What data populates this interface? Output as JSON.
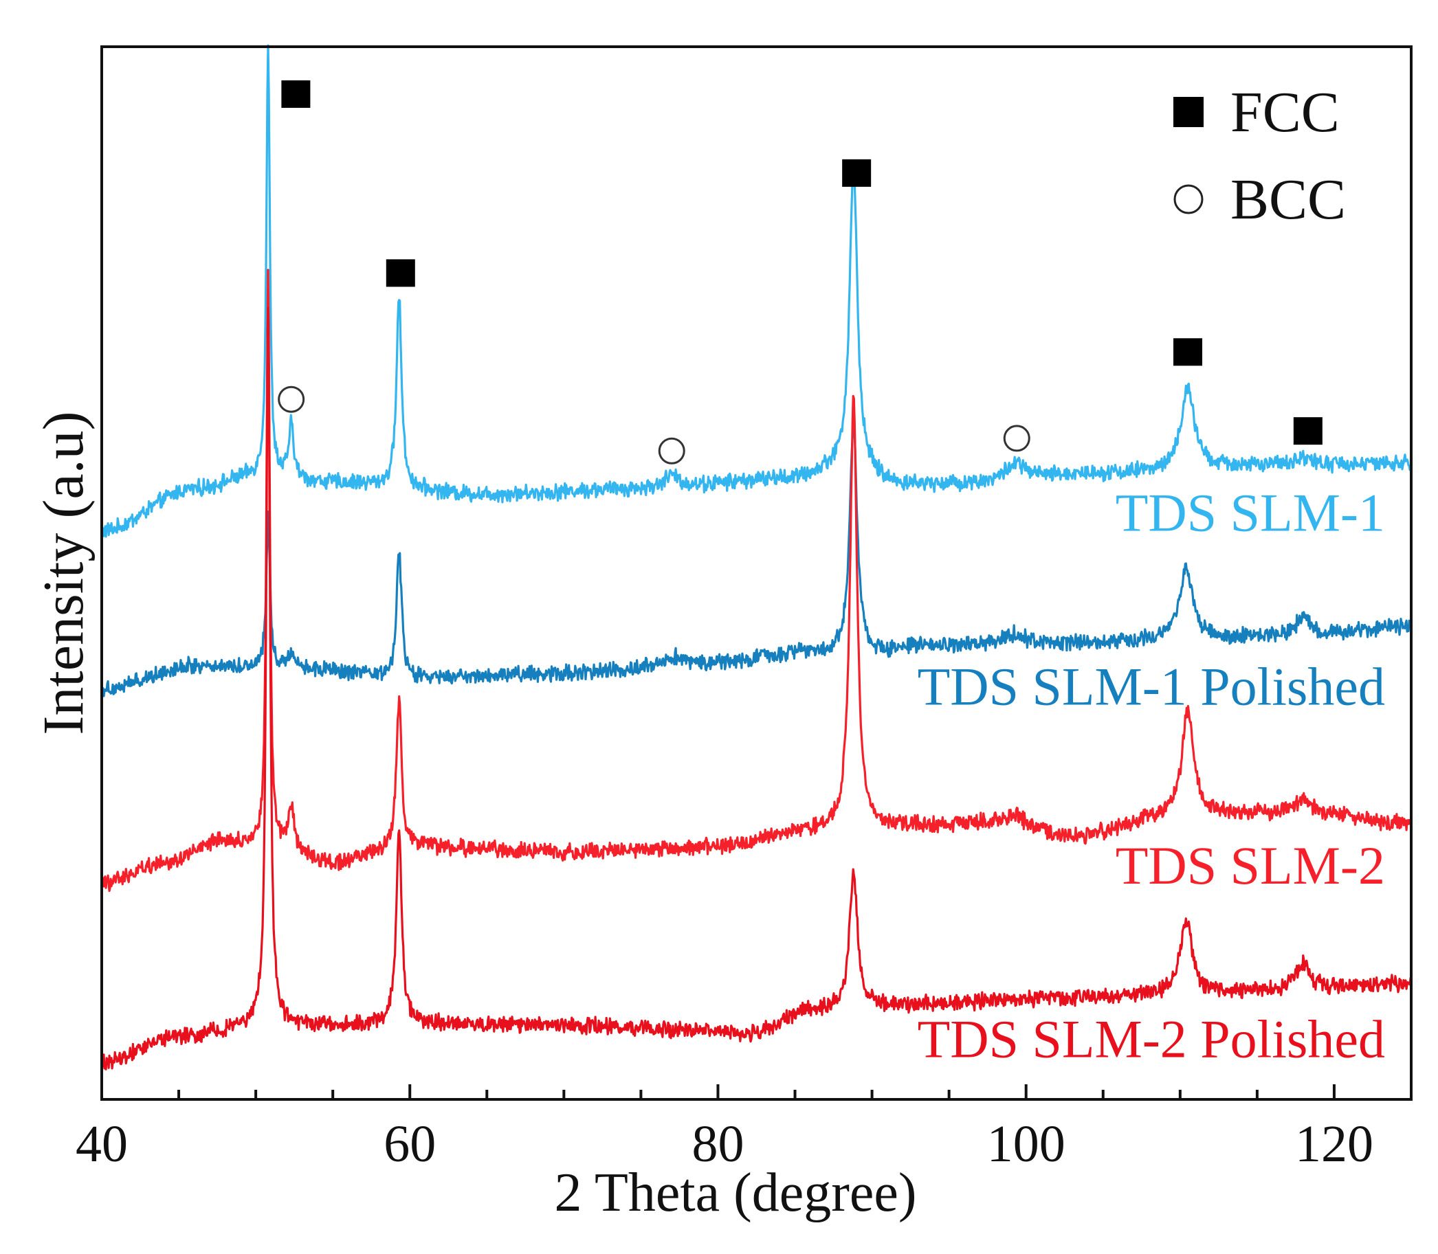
{
  "chart_data": {
    "type": "line",
    "title": "",
    "xlabel": "2 Theta (degree)",
    "ylabel": "Intensity (a.u)",
    "xlim": [
      40,
      125
    ],
    "ylim": [
      0,
      1
    ],
    "grid": false,
    "legend_position": "top-right",
    "x_ticks": [
      40,
      60,
      80,
      100,
      120
    ],
    "x_tick_labels": [
      "40",
      "60",
      "80",
      "100",
      "120"
    ],
    "legend": [
      {
        "label": "FCC",
        "marker": "filled-square"
      },
      {
        "label": "BCC",
        "marker": "open-circle"
      }
    ],
    "series": [
      {
        "name": "TDS SLM-1",
        "color": "#33b5f0",
        "baseline": [
          [
            40,
            0.54
          ],
          [
            46,
            0.58
          ],
          [
            50,
            0.592
          ],
          [
            55,
            0.586
          ],
          [
            65,
            0.575
          ],
          [
            75,
            0.58
          ],
          [
            85,
            0.59
          ],
          [
            88,
            0.6
          ],
          [
            92,
            0.584
          ],
          [
            96,
            0.585
          ],
          [
            105,
            0.595
          ],
          [
            115,
            0.602
          ],
          [
            125,
            0.604
          ]
        ],
        "peaks": [
          {
            "x": 50.8,
            "height": 0.41,
            "width": 0.13
          },
          {
            "x": 52.3,
            "height": 0.05,
            "width": 0.2
          },
          {
            "x": 59.3,
            "height": 0.18,
            "width": 0.2
          },
          {
            "x": 77.0,
            "height": 0.012,
            "width": 0.6
          },
          {
            "x": 88.8,
            "height": 0.29,
            "width": 0.3
          },
          {
            "x": 99.3,
            "height": 0.016,
            "width": 0.8
          },
          {
            "x": 110.5,
            "height": 0.078,
            "width": 0.5
          },
          {
            "x": 118.0,
            "height": 0.008,
            "width": 0.6
          }
        ]
      },
      {
        "name": "TDS SLM-1 Polished",
        "color": "#1680bf",
        "baseline": [
          [
            40,
            0.39
          ],
          [
            46,
            0.412
          ],
          [
            52,
            0.41
          ],
          [
            60,
            0.4
          ],
          [
            70,
            0.405
          ],
          [
            80,
            0.415
          ],
          [
            86,
            0.425
          ],
          [
            89,
            0.42
          ],
          [
            93,
            0.43
          ],
          [
            100,
            0.432
          ],
          [
            110,
            0.437
          ],
          [
            118,
            0.44
          ],
          [
            125,
            0.45
          ]
        ],
        "peaks": [
          {
            "x": 50.8,
            "height": 0.14,
            "width": 0.15
          },
          {
            "x": 52.3,
            "height": 0.015,
            "width": 0.25
          },
          {
            "x": 59.3,
            "height": 0.12,
            "width": 0.2
          },
          {
            "x": 77.0,
            "height": 0.008,
            "width": 0.7
          },
          {
            "x": 88.8,
            "height": 0.22,
            "width": 0.3
          },
          {
            "x": 99.3,
            "height": 0.01,
            "width": 0.8
          },
          {
            "x": 110.4,
            "height": 0.07,
            "width": 0.5
          },
          {
            "x": 118.0,
            "height": 0.02,
            "width": 0.5
          }
        ]
      },
      {
        "name": "TDS SLM-2",
        "color": "#f5202a",
        "baseline": [
          [
            40,
            0.205
          ],
          [
            44,
            0.225
          ],
          [
            48,
            0.245
          ],
          [
            51,
            0.238
          ],
          [
            55,
            0.225
          ],
          [
            60,
            0.24
          ],
          [
            70,
            0.235
          ],
          [
            80,
            0.24
          ],
          [
            86,
            0.255
          ],
          [
            89,
            0.255
          ],
          [
            93,
            0.26
          ],
          [
            98,
            0.262
          ],
          [
            103,
            0.25
          ],
          [
            110,
            0.27
          ],
          [
            118,
            0.273
          ],
          [
            125,
            0.262
          ]
        ],
        "peaks": [
          {
            "x": 50.8,
            "height": 0.55,
            "width": 0.13
          },
          {
            "x": 52.3,
            "height": 0.04,
            "width": 0.25
          },
          {
            "x": 59.3,
            "height": 0.14,
            "width": 0.2
          },
          {
            "x": 88.8,
            "height": 0.41,
            "width": 0.28
          },
          {
            "x": 99.3,
            "height": 0.01,
            "width": 0.8
          },
          {
            "x": 110.5,
            "height": 0.1,
            "width": 0.45
          },
          {
            "x": 118.0,
            "height": 0.012,
            "width": 0.5
          }
        ]
      },
      {
        "name": "TDS SLM-2 Polished",
        "color": "#e8101c",
        "baseline": [
          [
            40,
            0.035
          ],
          [
            45,
            0.06
          ],
          [
            50,
            0.07
          ],
          [
            55,
            0.07
          ],
          [
            60,
            0.072
          ],
          [
            70,
            0.07
          ],
          [
            80,
            0.065
          ],
          [
            82,
            0.062
          ],
          [
            86,
            0.085
          ],
          [
            89,
            0.088
          ],
          [
            93,
            0.09
          ],
          [
            100,
            0.095
          ],
          [
            110,
            0.1
          ],
          [
            118,
            0.105
          ],
          [
            125,
            0.11
          ]
        ],
        "peaks": [
          {
            "x": 50.8,
            "height": 0.68,
            "width": 0.15
          },
          {
            "x": 59.3,
            "height": 0.18,
            "width": 0.22
          },
          {
            "x": 88.8,
            "height": 0.13,
            "width": 0.3
          },
          {
            "x": 110.4,
            "height": 0.07,
            "width": 0.45
          },
          {
            "x": 118.0,
            "height": 0.025,
            "width": 0.5
          }
        ]
      }
    ],
    "annotations": [
      {
        "type": "FCC",
        "x": 52.6,
        "y": 0.955
      },
      {
        "type": "FCC",
        "x": 59.4,
        "y": 0.785
      },
      {
        "type": "FCC",
        "x": 89.0,
        "y": 0.88
      },
      {
        "type": "FCC",
        "x": 110.5,
        "y": 0.71
      },
      {
        "type": "FCC",
        "x": 118.3,
        "y": 0.635
      },
      {
        "type": "BCC",
        "x": 52.3,
        "y": 0.665
      },
      {
        "type": "BCC",
        "x": 77.0,
        "y": 0.616
      },
      {
        "type": "BCC",
        "x": 99.4,
        "y": 0.628
      }
    ],
    "series_label_positions": [
      {
        "series": "TDS SLM-1",
        "y": 0.54
      },
      {
        "series": "TDS SLM-1 Polished",
        "y": 0.375
      },
      {
        "series": "TDS SLM-2",
        "y": 0.205
      },
      {
        "series": "TDS SLM-2 Polished",
        "y": 0.04
      }
    ]
  }
}
